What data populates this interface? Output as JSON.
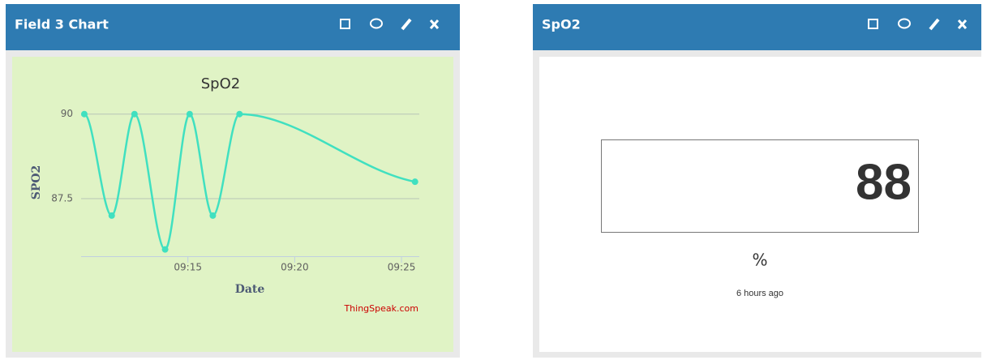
{
  "panels": [
    {
      "title": "Field 3 Chart"
    },
    {
      "title": "SpO2"
    }
  ],
  "chart_data": {
    "type": "line",
    "title": "SpO2",
    "x_label": "Date",
    "y_label": "SPO2",
    "credit": "ThingSpeak.com",
    "x": [
      "09:10:09",
      "09:11:26",
      "09:12:30",
      "09:13:56",
      "09:15:05",
      "09:16:10",
      "09:17:25",
      "09:25:38"
    ],
    "values": [
      90,
      87,
      90,
      86,
      90,
      87,
      90,
      88
    ],
    "color": "#40e0c0",
    "xlim": [
      "09:10:00",
      "09:25:50"
    ],
    "xticks": [
      {
        "value": "09:15:00",
        "label": "09:15"
      },
      {
        "value": "09:20:00",
        "label": "09:20"
      },
      {
        "value": "09:25:00",
        "label": "09:25"
      }
    ],
    "ylim": [
      85.8,
      90.4
    ],
    "yticks": [
      87.5,
      90
    ],
    "grid": true
  },
  "widget": {
    "value": 88,
    "unit": "%",
    "updated": "6 hours ago"
  }
}
